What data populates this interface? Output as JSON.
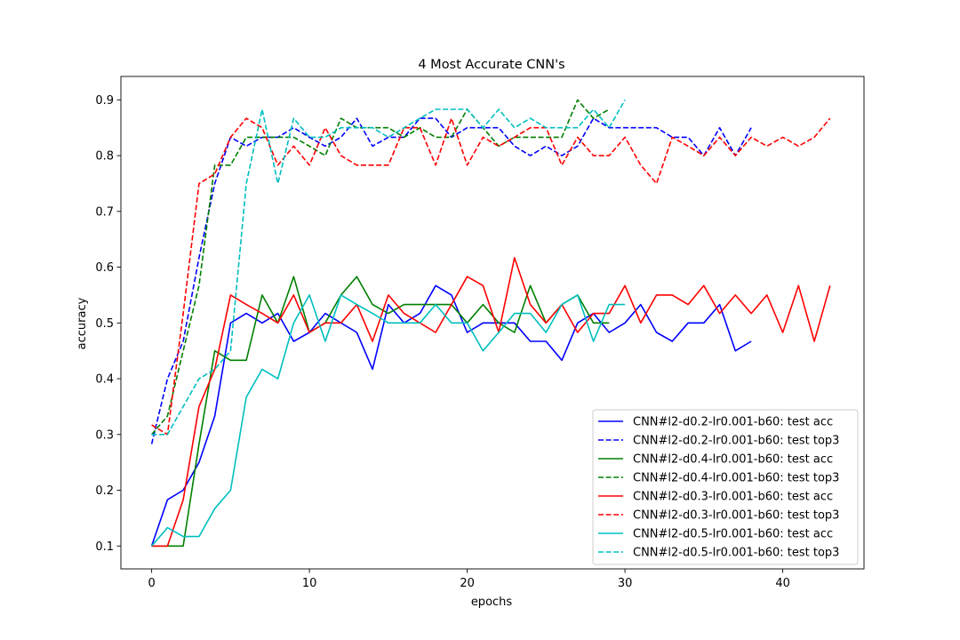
{
  "chart_data": {
    "type": "line",
    "title": "4 Most Accurate CNN's",
    "xlabel": "epochs",
    "ylabel": "accuracy",
    "xlim": [
      -1.95,
      45.15
    ],
    "ylim": [
      0.059,
      0.942
    ],
    "xticks": [
      0,
      10,
      20,
      30,
      40
    ],
    "yticks": [
      0.1,
      0.2,
      0.3,
      0.4,
      0.5,
      0.6,
      0.7,
      0.8,
      0.9
    ],
    "legend_position": "lower-right",
    "grid": false,
    "series": [
      {
        "name": "CNN#l2-d0.2-lr0.001-b60: test acc",
        "color": "#0000ff",
        "dash": "solid",
        "values": [
          0.1,
          0.183,
          0.2,
          0.25,
          0.333,
          0.5,
          0.517,
          0.5,
          0.517,
          0.467,
          0.483,
          0.517,
          0.5,
          0.483,
          0.417,
          0.533,
          0.5,
          0.517,
          0.567,
          0.55,
          0.483,
          0.5,
          0.5,
          0.5,
          0.467,
          0.467,
          0.433,
          0.5,
          0.517,
          0.483,
          0.5,
          0.533,
          0.483,
          0.467,
          0.5,
          0.5,
          0.533,
          0.45,
          0.467
        ]
      },
      {
        "name": "CNN#l2-d0.2-lr0.001-b60: test top3",
        "color": "#0000ff",
        "dash": "dashed",
        "values": [
          0.283,
          0.4,
          0.467,
          0.617,
          0.75,
          0.833,
          0.817,
          0.833,
          0.833,
          0.85,
          0.833,
          0.817,
          0.833,
          0.867,
          0.817,
          0.833,
          0.833,
          0.867,
          0.867,
          0.833,
          0.85,
          0.85,
          0.85,
          0.817,
          0.8,
          0.817,
          0.8,
          0.817,
          0.867,
          0.85,
          0.85,
          0.85,
          0.85,
          0.833,
          0.833,
          0.8,
          0.85,
          0.8,
          0.85
        ]
      },
      {
        "name": "CNN#l2-d0.4-lr0.001-b60: test acc",
        "color": "#008000",
        "dash": "solid",
        "values": [
          0.1,
          0.1,
          0.1,
          0.283,
          0.45,
          0.433,
          0.433,
          0.55,
          0.5,
          0.583,
          0.483,
          0.5,
          0.55,
          0.583,
          0.533,
          0.517,
          0.533,
          0.533,
          0.533,
          0.533,
          0.5,
          0.533,
          0.5,
          0.483,
          0.567,
          0.5,
          0.533,
          0.55,
          0.5,
          0.5
        ]
      },
      {
        "name": "CNN#l2-d0.4-lr0.001-b60: test top3",
        "color": "#008000",
        "dash": "dashed",
        "values": [
          0.3,
          0.333,
          0.45,
          0.567,
          0.783,
          0.783,
          0.833,
          0.833,
          0.833,
          0.833,
          0.817,
          0.8,
          0.867,
          0.85,
          0.85,
          0.85,
          0.833,
          0.85,
          0.833,
          0.833,
          0.883,
          0.85,
          0.817,
          0.833,
          0.833,
          0.833,
          0.833,
          0.9,
          0.867,
          0.883
        ]
      },
      {
        "name": "CNN#l2-d0.3-lr0.001-b60: test acc",
        "color": "#ff0000",
        "dash": "solid",
        "values": [
          0.1,
          0.1,
          0.183,
          0.35,
          0.417,
          0.55,
          0.533,
          0.517,
          0.5,
          0.55,
          0.483,
          0.5,
          0.5,
          0.533,
          0.467,
          0.55,
          0.517,
          0.5,
          0.483,
          0.533,
          0.583,
          0.567,
          0.483,
          0.617,
          0.533,
          0.5,
          0.533,
          0.483,
          0.517,
          0.517,
          0.567,
          0.5,
          0.55,
          0.55,
          0.533,
          0.567,
          0.517,
          0.55,
          0.517,
          0.55,
          0.483,
          0.567,
          0.467,
          0.567
        ]
      },
      {
        "name": "CNN#l2-d0.3-lr0.001-b60: test top3",
        "color": "#ff0000",
        "dash": "dashed",
        "values": [
          0.317,
          0.3,
          0.517,
          0.75,
          0.767,
          0.833,
          0.867,
          0.85,
          0.783,
          0.817,
          0.783,
          0.85,
          0.8,
          0.783,
          0.783,
          0.783,
          0.85,
          0.85,
          0.783,
          0.867,
          0.783,
          0.833,
          0.817,
          0.833,
          0.85,
          0.85,
          0.783,
          0.833,
          0.8,
          0.8,
          0.833,
          0.783,
          0.75,
          0.833,
          0.817,
          0.8,
          0.833,
          0.8,
          0.833,
          0.817,
          0.833,
          0.817,
          0.833,
          0.867
        ]
      },
      {
        "name": "CNN#l2-d0.5-lr0.001-b60: test acc",
        "color": "#00bfbf",
        "dash": "solid",
        "values": [
          0.1,
          0.133,
          0.117,
          0.117,
          0.167,
          0.2,
          0.367,
          0.417,
          0.4,
          0.5,
          0.55,
          0.467,
          0.55,
          0.533,
          0.517,
          0.5,
          0.5,
          0.5,
          0.533,
          0.5,
          0.5,
          0.45,
          0.483,
          0.517,
          0.517,
          0.483,
          0.533,
          0.55,
          0.467,
          0.533,
          0.533
        ]
      },
      {
        "name": "CNN#l2-d0.5-lr0.001-b60: test top3",
        "color": "#00bfbf",
        "dash": "dashed",
        "values": [
          0.3,
          0.3,
          0.35,
          0.4,
          0.417,
          0.45,
          0.75,
          0.883,
          0.75,
          0.867,
          0.833,
          0.833,
          0.85,
          0.85,
          0.85,
          0.833,
          0.85,
          0.867,
          0.883,
          0.883,
          0.883,
          0.85,
          0.883,
          0.85,
          0.867,
          0.85,
          0.85,
          0.85,
          0.883,
          0.85,
          0.9
        ]
      }
    ]
  }
}
